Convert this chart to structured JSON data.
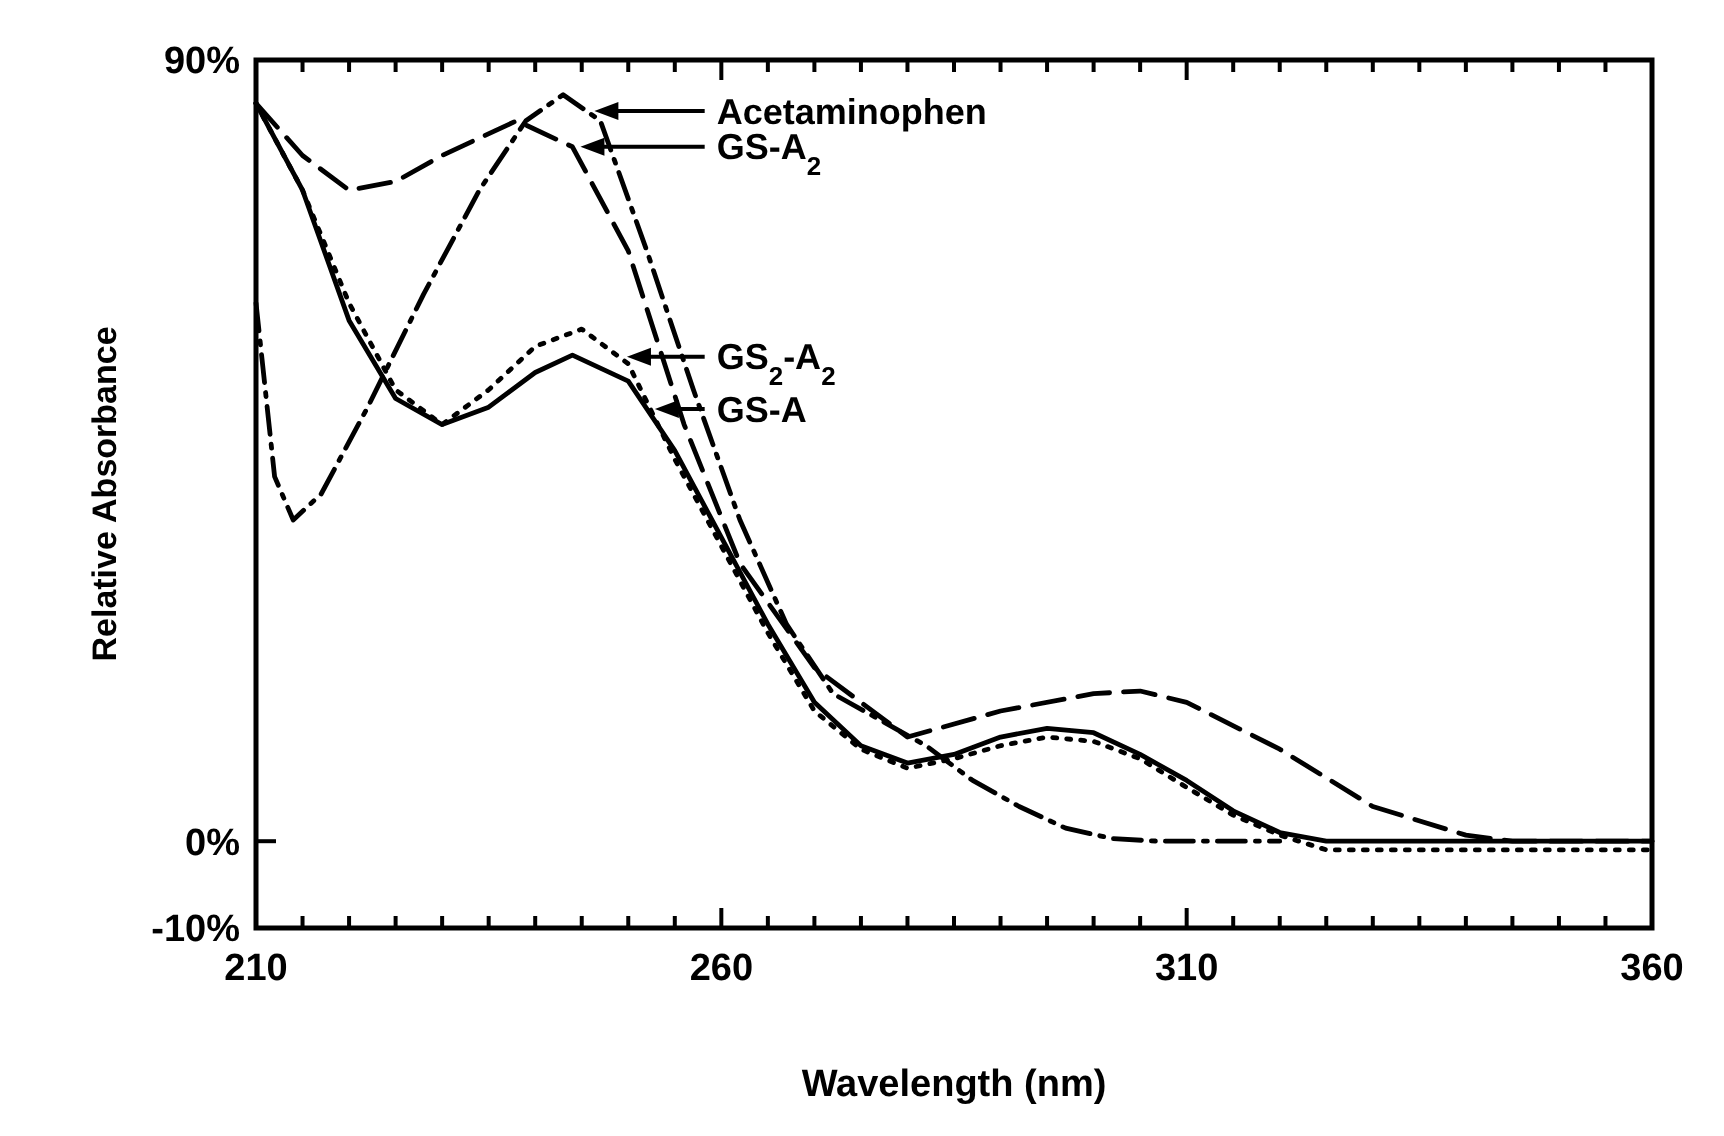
{
  "chart_data": {
    "type": "line",
    "xlabel": "Wavelength (nm)",
    "ylabel": "Relative Absorbance",
    "xlim": [
      210,
      360
    ],
    "ylim": [
      -10,
      90
    ],
    "xticks": [
      210,
      {
        "value": 215,
        "label": null
      },
      {
        "value": 220,
        "label": null
      },
      {
        "value": 225,
        "label": null
      },
      {
        "value": 230,
        "label": null
      },
      {
        "value": 235,
        "label": null
      },
      {
        "value": 240,
        "label": null
      },
      {
        "value": 245,
        "label": null
      },
      {
        "value": 250,
        "label": null
      },
      {
        "value": 255,
        "label": null
      },
      260,
      {
        "value": 265,
        "label": null
      },
      {
        "value": 270,
        "label": null
      },
      {
        "value": 275,
        "label": null
      },
      {
        "value": 280,
        "label": null
      },
      {
        "value": 285,
        "label": null
      },
      {
        "value": 290,
        "label": null
      },
      {
        "value": 295,
        "label": null
      },
      {
        "value": 300,
        "label": null
      },
      {
        "value": 305,
        "label": null
      },
      310,
      {
        "value": 315,
        "label": null
      },
      {
        "value": 320,
        "label": null
      },
      {
        "value": 325,
        "label": null
      },
      {
        "value": 330,
        "label": null
      },
      {
        "value": 335,
        "label": null
      },
      {
        "value": 340,
        "label": null
      },
      {
        "value": 345,
        "label": null
      },
      {
        "value": 350,
        "label": null
      },
      {
        "value": 355,
        "label": null
      },
      360
    ],
    "yticks": [
      {
        "value": 90,
        "label": "90%"
      },
      {
        "value": 0,
        "label": "0%"
      },
      {
        "value": -10,
        "label": "-10%"
      }
    ],
    "grid": false,
    "legend": "top",
    "series": [
      {
        "name": "Acetaminophen",
        "color": "#000000",
        "line_style": "dashdot",
        "x": [
          210,
          212,
          214,
          217,
          222,
          228,
          234,
          239,
          243,
          247,
          252,
          257,
          262,
          267,
          272,
          277,
          282,
          287,
          292,
          297,
          302,
          307,
          320
        ],
        "values": [
          62,
          42,
          37,
          40,
          50,
          63,
          75,
          83,
          86,
          83,
          68,
          52,
          37,
          25,
          17,
          14,
          11,
          7,
          4,
          1.5,
          0.3,
          0,
          0
        ]
      },
      {
        "name": "GS-A$_{2}$",
        "color": "#000000",
        "line_style": "dashed",
        "x": [
          210,
          215,
          220,
          225,
          230,
          238,
          244,
          250,
          256,
          262,
          270,
          280,
          290,
          300,
          305,
          310,
          320,
          330,
          340,
          345,
          360
        ],
        "values": [
          85,
          79,
          75,
          76,
          79,
          83,
          80,
          68,
          48,
          32,
          20,
          12,
          15,
          17,
          17.3,
          16,
          10.6,
          4,
          0.7,
          0,
          0
        ]
      },
      {
        "name": "GS$_{2}$-A$_{2}$",
        "color": "#000000",
        "line_style": "dotted",
        "x": [
          210,
          215,
          220,
          225,
          230,
          235,
          240,
          245,
          250,
          255,
          260,
          265,
          270,
          275,
          280,
          285,
          290,
          295,
          300,
          305,
          310,
          315,
          320,
          325,
          360
        ],
        "values": [
          85,
          75,
          62,
          52,
          48,
          52,
          57,
          59,
          55,
          44,
          34,
          24,
          15,
          10.6,
          8.4,
          9.5,
          11,
          12,
          11.5,
          9.5,
          6.2,
          3,
          0.7,
          -1,
          -1
        ]
      },
      {
        "name": "GS-A",
        "color": "#000000",
        "line_style": "solid",
        "x": [
          210,
          215,
          220,
          225,
          230,
          235,
          240,
          244,
          250,
          255,
          260,
          265,
          270,
          275,
          280,
          285,
          290,
          295,
          300,
          305,
          310,
          315,
          320,
          325,
          360
        ],
        "values": [
          85,
          75,
          60,
          51,
          48,
          50,
          54,
          56,
          53,
          45,
          35,
          25,
          16,
          11,
          9,
          10,
          12,
          13,
          12.5,
          10,
          7,
          3.5,
          1,
          0,
          0
        ]
      }
    ]
  }
}
